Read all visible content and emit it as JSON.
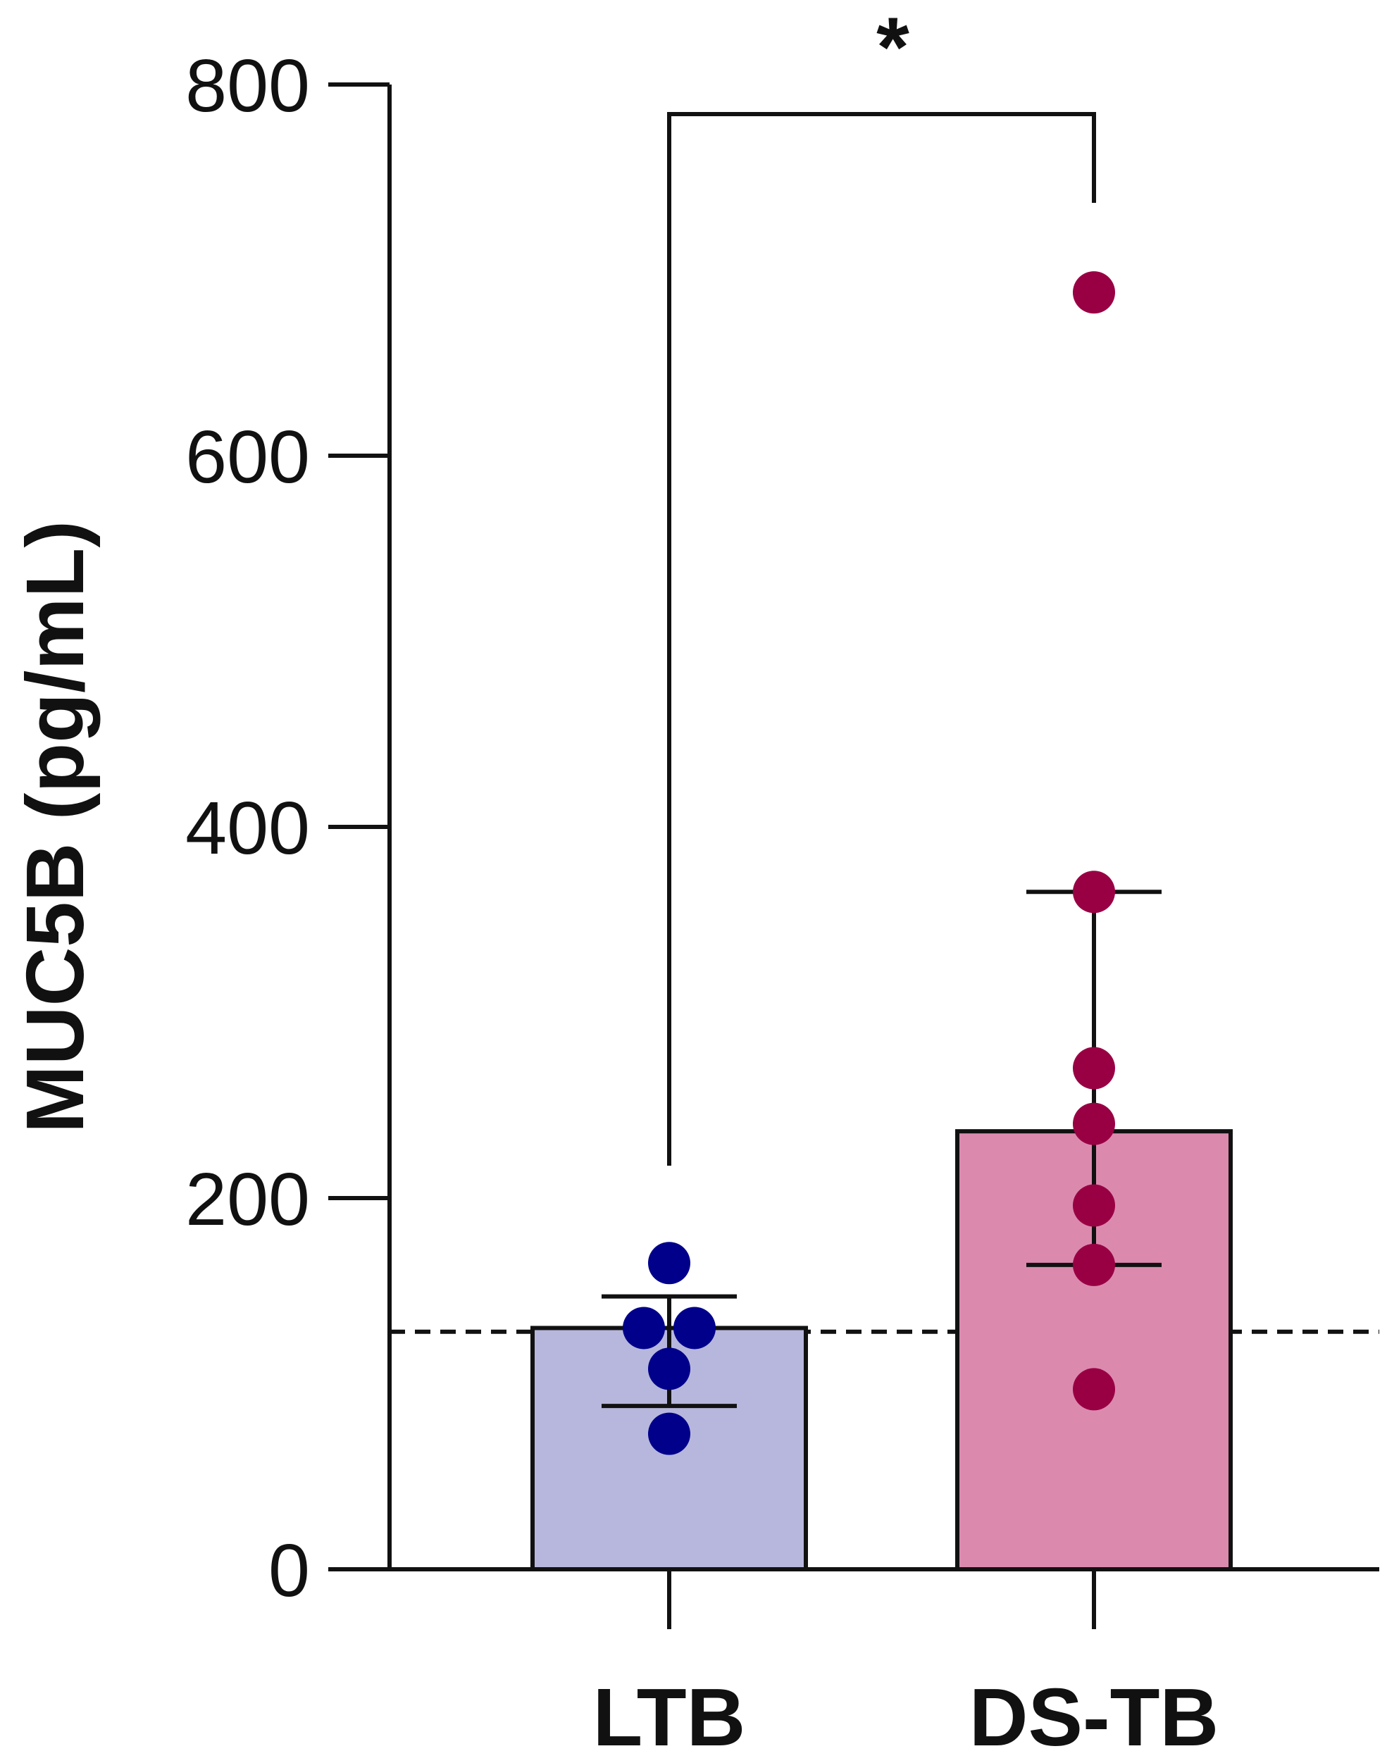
{
  "chart_data": {
    "type": "bar",
    "ylabel": "MUC5B (pg/mL)",
    "ylim": [
      0,
      800
    ],
    "yticks": [
      "0",
      "200",
      "400",
      "600",
      "800"
    ],
    "categories": [
      "LTB",
      "DS-TB"
    ],
    "bars": [
      {
        "name": "LTB",
        "mean": 130,
        "error": [
          88,
          147
        ],
        "fill": "#b7b7dd",
        "point_color": "#00008b",
        "points": [
          165,
          130,
          130,
          108,
          73
        ]
      },
      {
        "name": "DS-TB",
        "mean": 236,
        "error": [
          164,
          365
        ],
        "fill": "#db8aae",
        "point_color": "#990044",
        "points": [
          688,
          365,
          270,
          240,
          196,
          164,
          97
        ]
      }
    ],
    "reference_line": {
      "value": 128,
      "style": "dashed"
    },
    "significance": {
      "label": "*",
      "between": [
        "LTB",
        "DS-TB"
      ]
    }
  }
}
